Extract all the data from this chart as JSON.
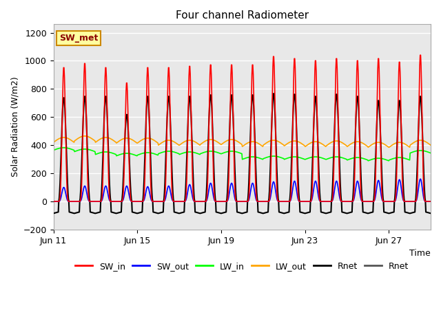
{
  "title": "Four channel Radiometer",
  "ylabel": "Solar Radiation (W/m2)",
  "xlabel": "Time",
  "annotation": "SW_met",
  "ylim": [
    -200,
    1260
  ],
  "yticks": [
    -200,
    0,
    200,
    400,
    600,
    800,
    1000,
    1200
  ],
  "n_days": 18,
  "hours_per_day": 24,
  "colors": {
    "SW_in": "#ff0000",
    "SW_out": "#0000ff",
    "LW_in": "#00ff00",
    "LW_out": "#ffa500",
    "Rnet": "#000000",
    "Rnet2": "#555555"
  },
  "bg_color": "#e8e8e8",
  "legend_labels": [
    "SW_in",
    "SW_out",
    "LW_in",
    "LW_out",
    "Rnet",
    "Rnet"
  ],
  "legend_colors": [
    "#ff0000",
    "#0000ff",
    "#00ff00",
    "#ffa500",
    "#000000",
    "#555555"
  ],
  "xtick_labels": [
    "Jun 11",
    "Jun 15",
    "Jun 19",
    "Jun 23",
    "Jun 27"
  ],
  "xtick_days": [
    0,
    4,
    8,
    12,
    16
  ],
  "sw_in_peaks": [
    960,
    990,
    960,
    850,
    960,
    960,
    970,
    980,
    980,
    980,
    1040,
    1025,
    1010,
    1025,
    1010,
    1025,
    1000,
    1050
  ],
  "sw_out_peaks": [
    100,
    110,
    110,
    110,
    105,
    110,
    120,
    130,
    130,
    130,
    140,
    145,
    145,
    145,
    145,
    150,
    155,
    160
  ],
  "lw_in_base": [
    370,
    360,
    340,
    330,
    335,
    345,
    340,
    345,
    345,
    305,
    310,
    305,
    305,
    305,
    300,
    295,
    300,
    350
  ],
  "lw_out_base": [
    420,
    430,
    420,
    415,
    415,
    400,
    400,
    405,
    405,
    390,
    400,
    395,
    390,
    395,
    390,
    385,
    385,
    400
  ],
  "rnet_peaks": [
    740,
    750,
    750,
    620,
    750,
    750,
    750,
    760,
    760,
    760,
    770,
    765,
    750,
    765,
    750,
    720,
    720,
    750
  ],
  "rnet_night": -75
}
